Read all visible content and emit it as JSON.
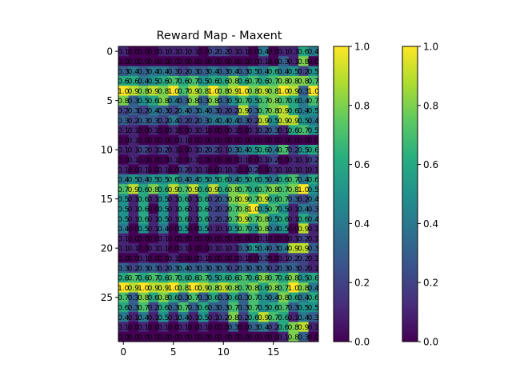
{
  "chart_data": {
    "type": "heatmap",
    "title": "Reward Map - Maxent",
    "rows": 30,
    "cols": 20,
    "colormap": "viridis",
    "vmin": 0.0,
    "vmax": 1.0,
    "x_ticks": [
      0,
      5,
      10,
      15
    ],
    "y_ticks": [
      0,
      5,
      10,
      15,
      20,
      25
    ],
    "cell_text_format": "one-decimal",
    "values": [
      [
        0.1,
        0.0,
        0.0,
        0.0,
        0.1,
        0.1,
        0.1,
        0.1,
        0.0,
        0.2,
        0.2,
        0.1,
        0.1,
        0.0,
        0.4,
        0.0,
        0.1,
        0.1,
        0.6,
        0.4
      ],
      [
        0.0,
        0.0,
        0.0,
        0.0,
        0.0,
        0.0,
        0.0,
        0.0,
        0.0,
        0.0,
        0.0,
        0.0,
        0.0,
        0.0,
        0.1,
        0.0,
        0.3,
        0.1,
        0.8,
        0.0
      ],
      [
        0.3,
        0.4,
        0.3,
        0.4,
        0.4,
        0.3,
        0.2,
        0.3,
        0.3,
        0.4,
        0.3,
        0.4,
        0.3,
        0.5,
        0.4,
        0.6,
        0.4,
        0.5,
        0.2,
        0.5
      ],
      [
        0.6,
        0.6,
        0.4,
        0.5,
        0.6,
        0.7,
        0.6,
        0.7,
        0.5,
        0.6,
        0.6,
        0.8,
        0.6,
        0.7,
        0.6,
        0.7,
        0.8,
        0.8,
        0.8,
        0.7
      ],
      [
        1.0,
        0.9,
        0.8,
        0.9,
        0.8,
        1.0,
        0.7,
        0.9,
        0.8,
        1.0,
        0.8,
        0.9,
        1.0,
        0.8,
        0.9,
        0.8,
        1.0,
        0.9,
        0.3,
        1.0
      ],
      [
        0.8,
        0.3,
        0.5,
        0.6,
        0.8,
        0.4,
        0.3,
        0.8,
        0.3,
        0.8,
        0.3,
        0.5,
        0.7,
        0.5,
        0.7,
        0.8,
        0.7,
        0.6,
        0.4,
        0.7
      ],
      [
        0.2,
        0.3,
        0.2,
        0.4,
        0.3,
        0.2,
        0.4,
        0.3,
        0.4,
        0.3,
        0.2,
        0.2,
        0.9,
        0.3,
        0.7,
        0.8,
        0.9,
        0.6,
        0.4,
        0.5
      ],
      [
        0.3,
        0.2,
        0.3,
        0.3,
        0.2,
        0.4,
        0.2,
        0.2,
        0.3,
        0.4,
        0.4,
        0.4,
        0.3,
        0.2,
        0.9,
        0.5,
        0.9,
        0.9,
        0.5,
        0.4
      ],
      [
        0.1,
        0.1,
        0.0,
        0.1,
        0.0,
        0.1,
        0.0,
        0.1,
        0.1,
        0.0,
        0.0,
        0.1,
        0.0,
        0.1,
        0.2,
        0.3,
        0.1,
        0.6,
        0.7,
        0.5
      ],
      [
        0.0,
        0.1,
        0.0,
        0.0,
        0.0,
        0.0,
        0.1,
        0.0,
        0.0,
        0.0,
        0.0,
        0.0,
        0.0,
        0.0,
        0.0,
        0.0,
        0.0,
        0.0,
        0.0,
        0.0
      ],
      [
        0.1,
        0.1,
        0.2,
        0.1,
        0.2,
        0.1,
        0.0,
        0.1,
        0.2,
        0.2,
        0.1,
        0.3,
        0.4,
        0.5,
        0.6,
        0.4,
        0.7,
        0.2,
        0.5,
        0.6
      ],
      [
        0.0,
        0.1,
        0.0,
        0.0,
        0.0,
        0.1,
        0.0,
        0.1,
        0.0,
        0.0,
        0.0,
        0.0,
        0.1,
        0.0,
        0.1,
        0.2,
        0.0,
        0.1,
        0.1,
        0.2
      ],
      [
        0.1,
        0.0,
        0.1,
        0.0,
        0.1,
        0.0,
        0.2,
        0.1,
        0.1,
        0.0,
        0.1,
        0.1,
        0.0,
        0.2,
        0.0,
        0.1,
        0.1,
        0.1,
        0.1,
        0.1
      ],
      [
        0.4,
        0.5,
        0.4,
        0.5,
        0.5,
        0.6,
        0.4,
        0.4,
        0.5,
        0.5,
        0.6,
        0.4,
        0.5,
        0.6,
        0.5,
        0.4,
        0.6,
        0.7,
        0.4,
        0.6
      ],
      [
        0.7,
        0.9,
        0.6,
        0.8,
        0.6,
        0.9,
        0.7,
        0.9,
        0.6,
        0.9,
        0.6,
        0.8,
        0.7,
        0.6,
        0.7,
        0.8,
        0.7,
        0.8,
        1.0,
        0.5
      ],
      [
        0.5,
        0.1,
        0.6,
        0.1,
        0.5,
        0.1,
        0.6,
        0.1,
        0.6,
        0.2,
        0.3,
        0.8,
        0.9,
        0.7,
        0.9,
        0.6,
        0.7,
        0.3,
        0.2,
        0.4
      ],
      [
        0.5,
        0.1,
        0.6,
        0.0,
        0.5,
        0.1,
        0.6,
        0.1,
        0.6,
        0.2,
        0.2,
        0.7,
        0.8,
        1.0,
        0.5,
        0.7,
        0.5,
        0.1,
        0.4,
        0.3
      ],
      [
        0.5,
        0.1,
        0.6,
        0.1,
        0.5,
        0.1,
        0.6,
        0.1,
        0.6,
        0.2,
        0.2,
        0.7,
        0.9,
        0.7,
        0.8,
        0.5,
        0.6,
        0.1,
        0.6,
        0.4
      ],
      [
        0.4,
        0.0,
        0.5,
        0.1,
        0.4,
        0.0,
        0.5,
        0.0,
        0.5,
        0.1,
        0.1,
        0.5,
        0.7,
        0.5,
        0.8,
        0.4,
        0.5,
        0.0,
        0.9,
        0.1
      ],
      [
        0.1,
        0.0,
        0.0,
        0.0,
        0.1,
        0.0,
        0.0,
        0.0,
        0.0,
        0.0,
        0.0,
        0.0,
        0.0,
        0.0,
        0.1,
        0.0,
        0.0,
        0.1,
        0.2,
        0.1
      ],
      [
        0.1,
        0.1,
        0.0,
        0.1,
        0.1,
        0.0,
        0.1,
        0.0,
        0.0,
        0.1,
        0.1,
        0.1,
        0.3,
        0.5,
        0.4,
        0.3,
        0.4,
        0.9,
        0.9,
        0.3
      ],
      [
        0.0,
        0.0,
        0.1,
        0.0,
        0.0,
        0.1,
        0.0,
        0.0,
        0.1,
        0.0,
        0.0,
        0.0,
        0.1,
        0.0,
        0.2,
        0.0,
        0.1,
        0.2,
        0.2,
        0.1
      ],
      [
        0.3,
        0.2,
        0.3,
        0.3,
        0.2,
        0.3,
        0.4,
        0.3,
        0.3,
        0.3,
        0.3,
        0.2,
        0.3,
        0.3,
        0.3,
        0.2,
        0.3,
        0.3,
        0.2,
        0.1
      ],
      [
        0.6,
        0.7,
        0.6,
        0.7,
        0.6,
        0.7,
        0.6,
        0.6,
        0.7,
        0.5,
        0.6,
        0.6,
        0.7,
        0.6,
        0.8,
        0.7,
        0.6,
        0.8,
        0.5,
        0.6
      ],
      [
        1.0,
        0.9,
        1.0,
        0.9,
        0.9,
        1.0,
        0.8,
        1.0,
        0.9,
        0.8,
        0.9,
        0.8,
        0.7,
        0.8,
        0.6,
        0.8,
        0.7,
        1.0,
        0.8,
        0.4
      ],
      [
        0.7,
        0.3,
        0.8,
        0.6,
        0.8,
        0.6,
        0.3,
        0.7,
        0.3,
        0.6,
        0.3,
        0.6,
        0.3,
        0.7,
        0.5,
        0.4,
        0.8,
        0.6,
        0.4,
        0.6
      ],
      [
        0.6,
        0.3,
        0.7,
        0.2,
        0.6,
        0.3,
        0.7,
        0.3,
        0.6,
        0.3,
        0.3,
        0.7,
        0.3,
        0.7,
        0.5,
        0.6,
        0.7,
        0.3,
        0.5,
        0.5
      ],
      [
        0.4,
        0.1,
        0.4,
        0.1,
        0.5,
        0.1,
        0.4,
        0.1,
        0.5,
        0.1,
        0.2,
        0.8,
        0.2,
        0.6,
        0.9,
        0.7,
        0.6,
        0.1,
        0.4,
        0.3
      ],
      [
        0.1,
        0.0,
        0.1,
        0.0,
        0.1,
        0.0,
        0.1,
        0.0,
        0.1,
        0.0,
        0.0,
        0.3,
        0.0,
        0.3,
        0.4,
        0.2,
        0.6,
        0.8,
        0.9,
        0.1
      ],
      [
        0.0,
        0.0,
        0.0,
        0.0,
        0.0,
        0.0,
        0.0,
        0.0,
        0.0,
        0.0,
        0.0,
        0.0,
        0.0,
        0.0,
        0.0,
        0.0,
        0.1,
        0.8,
        0.3,
        0.0
      ]
    ],
    "colorbars": [
      {
        "ticks": [
          0.0,
          0.2,
          0.4,
          0.6,
          0.8,
          1.0
        ],
        "tick_labels": [
          "0.0",
          "0.2",
          "0.4",
          "0.6",
          "0.8",
          "1.0"
        ]
      },
      {
        "ticks": [
          0.0,
          0.2,
          0.4,
          0.6,
          0.8,
          1.0
        ],
        "tick_labels": [
          "0.0",
          "0.2",
          "0.4",
          "0.6",
          "0.8",
          "1.0"
        ]
      }
    ]
  }
}
